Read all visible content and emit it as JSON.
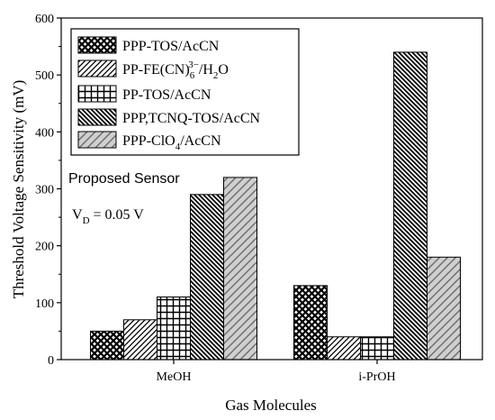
{
  "chart_data": {
    "type": "bar",
    "title": "",
    "xlabel": "Gas Molecules",
    "ylabel": "Threshold Voltage Sensitivity (mV)",
    "ylim": [
      0,
      600
    ],
    "yticks": [
      "0",
      "100",
      "200",
      "300",
      "400",
      "500",
      "600"
    ],
    "categories": [
      "MeOH",
      "i-PrOH"
    ],
    "grid": false,
    "legend_position": "top-left",
    "series": [
      {
        "name": "PPP-TOS/AcCN",
        "legend_parts": [
          {
            "t": "PPP-TOS/AcCN",
            "s": "n"
          }
        ],
        "values": [
          50,
          130
        ],
        "pattern": "crosshatch"
      },
      {
        "name": "PP-FE(CN)6 3−/H2O",
        "legend_parts": [
          {
            "t": "PP-FE(CN)",
            "s": "n"
          },
          {
            "t": "6",
            "s": "sub"
          },
          {
            "t": "3−",
            "s": "sup"
          },
          {
            "t": "/H",
            "s": "n"
          },
          {
            "t": "2",
            "s": "sub"
          },
          {
            "t": "O",
            "s": "n"
          }
        ],
        "values": [
          70,
          40
        ],
        "pattern": "diag-up"
      },
      {
        "name": "PP-TOS/AcCN",
        "legend_parts": [
          {
            "t": "PP-TOS/AcCN",
            "s": "n"
          }
        ],
        "values": [
          110,
          40
        ],
        "pattern": "grid"
      },
      {
        "name": "PPP,TCNQ-TOS/AcCN",
        "legend_parts": [
          {
            "t": "PPP,TCNQ-TOS/AcCN",
            "s": "n"
          }
        ],
        "values": [
          290,
          540
        ],
        "pattern": "diag-down"
      },
      {
        "name": "PPP-ClO4/AcCN",
        "legend_parts": [
          {
            "t": "PPP-ClO",
            "s": "n"
          },
          {
            "t": "4",
            "s": "sub"
          },
          {
            "t": "/AcCN",
            "s": "n"
          }
        ],
        "values": [
          320,
          180
        ],
        "pattern": "diag-light"
      }
    ],
    "annotations": {
      "sensor_text": "Proposed Sensor",
      "vd_parts": [
        {
          "t": "V",
          "s": "n"
        },
        {
          "t": "D",
          "s": "sub"
        },
        {
          "t": " = 0.05 V",
          "s": "n"
        }
      ]
    }
  }
}
